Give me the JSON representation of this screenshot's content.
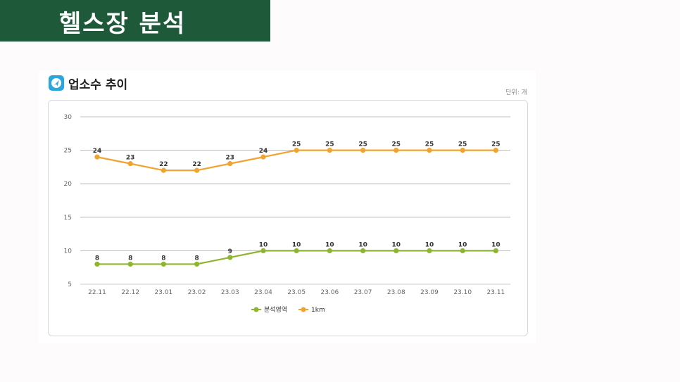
{
  "banner": {
    "title": "헬스장 분석"
  },
  "panel": {
    "title": "업소수 추이",
    "unit": "단위: 개"
  },
  "colors": {
    "banner_bg": "#1e5a3a",
    "series_area": "#8db52d",
    "series_1km": "#f0a330",
    "icon": "#2aa7e0"
  },
  "icons": {
    "panel_icon": "navigation-icon"
  },
  "chart_data": {
    "type": "line",
    "categories": [
      "22.11",
      "22.12",
      "23.01",
      "23.02",
      "23.03",
      "23.04",
      "23.05",
      "23.06",
      "23.07",
      "23.08",
      "23.09",
      "23.10",
      "23.11"
    ],
    "series": [
      {
        "name": "분석영역",
        "values": [
          8,
          8,
          8,
          8,
          9,
          10,
          10,
          10,
          10,
          10,
          10,
          10,
          10
        ]
      },
      {
        "name": "1km",
        "values": [
          24,
          23,
          22,
          22,
          23,
          24,
          25,
          25,
          25,
          25,
          25,
          25,
          25
        ]
      }
    ],
    "yticks": [
      5,
      10,
      15,
      20,
      25,
      30
    ],
    "ylim": [
      5,
      30
    ],
    "grid": true,
    "legend_position": "bottom-center"
  }
}
